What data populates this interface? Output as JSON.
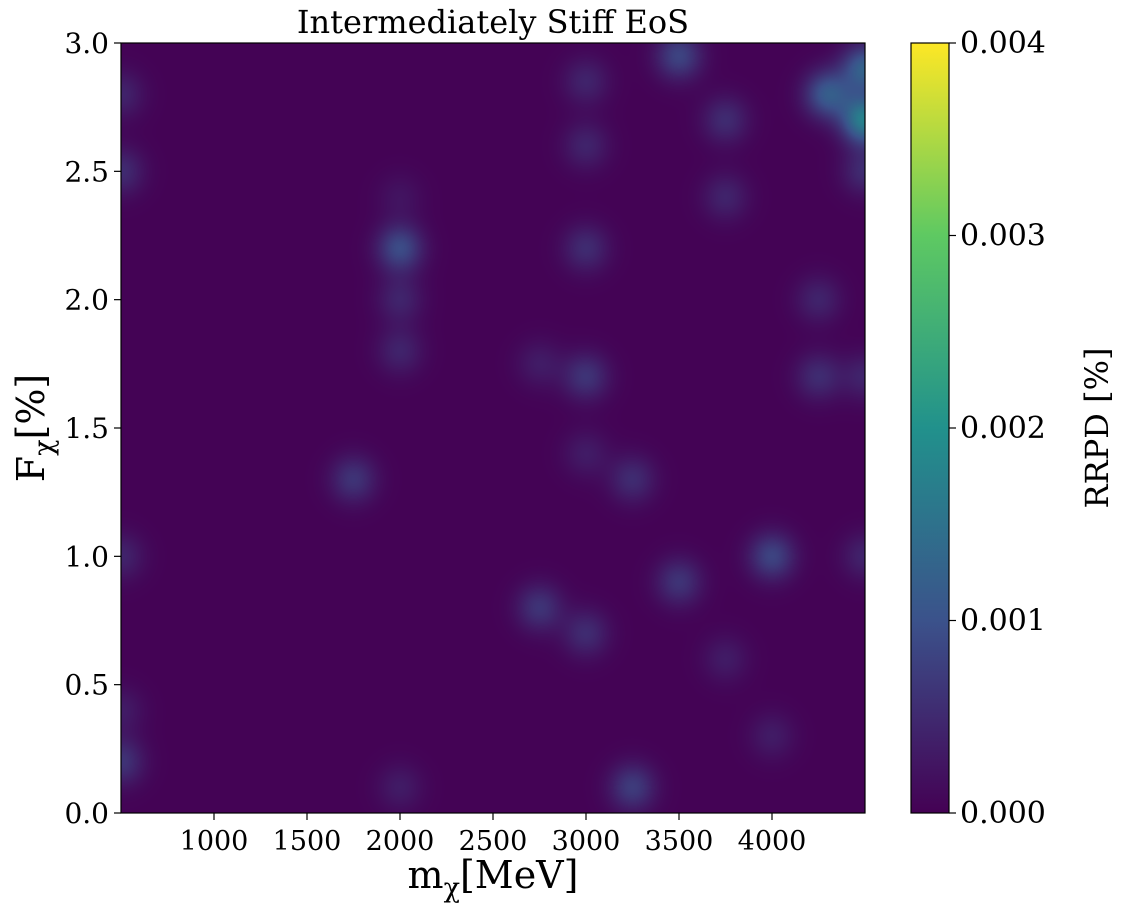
{
  "chart_data": {
    "type": "heatmap",
    "title": "Intermediately Stiff EoS",
    "xlabel": "m",
    "xlabel_sub": "χ",
    "xlabel_unit": "[MeV]",
    "ylabel": "F",
    "ylabel_sub": "χ",
    "ylabel_unit": "[%]",
    "colorbar_label": "RRPD [%]",
    "colormap": "viridis",
    "colormap_stops": [
      "#440154",
      "#3b528b",
      "#21918c",
      "#5ec962",
      "#fde725"
    ],
    "xlim": [
      500,
      4500
    ],
    "ylim": [
      0.0,
      3.0
    ],
    "clim": [
      0.0,
      0.004
    ],
    "x_ticks": [
      1000,
      1500,
      2000,
      2500,
      3000,
      3500,
      4000
    ],
    "x_tick_labels": [
      "1000",
      "1500",
      "2000",
      "2500",
      "3000",
      "3500",
      "4000"
    ],
    "y_ticks": [
      0.0,
      0.5,
      1.0,
      1.5,
      2.0,
      2.5,
      3.0
    ],
    "y_tick_labels": [
      "0.0",
      "0.5",
      "1.0",
      "1.5",
      "2.0",
      "2.5",
      "3.0"
    ],
    "colorbar_ticks": [
      0.0,
      0.001,
      0.002,
      0.003,
      0.004
    ],
    "colorbar_tick_labels": [
      "0.000",
      "0.001",
      "0.002",
      "0.003",
      "0.004"
    ],
    "background_value": 2e-05,
    "hotspots": [
      {
        "x": 2000,
        "y": 2.2,
        "value": 0.0009
      },
      {
        "x": 2000,
        "y": 2.0,
        "value": 0.0004
      },
      {
        "x": 2000,
        "y": 1.8,
        "value": 0.0004
      },
      {
        "x": 2000,
        "y": 2.4,
        "value": 0.0002
      },
      {
        "x": 1750,
        "y": 1.3,
        "value": 0.0006
      },
      {
        "x": 3000,
        "y": 2.2,
        "value": 0.0005
      },
      {
        "x": 3000,
        "y": 1.7,
        "value": 0.0006
      },
      {
        "x": 2750,
        "y": 1.75,
        "value": 0.0003
      },
      {
        "x": 3000,
        "y": 1.4,
        "value": 0.0003
      },
      {
        "x": 3250,
        "y": 1.3,
        "value": 0.0005
      },
      {
        "x": 3500,
        "y": 0.9,
        "value": 0.0006
      },
      {
        "x": 2750,
        "y": 0.8,
        "value": 0.0006
      },
      {
        "x": 3000,
        "y": 0.7,
        "value": 0.0005
      },
      {
        "x": 3250,
        "y": 0.1,
        "value": 0.0007
      },
      {
        "x": 2000,
        "y": 0.1,
        "value": 0.0003
      },
      {
        "x": 4000,
        "y": 1.0,
        "value": 0.0008
      },
      {
        "x": 4500,
        "y": 1.0,
        "value": 0.0004
      },
      {
        "x": 4250,
        "y": 1.7,
        "value": 0.0005
      },
      {
        "x": 4500,
        "y": 1.7,
        "value": 0.0004
      },
      {
        "x": 4250,
        "y": 2.0,
        "value": 0.0004
      },
      {
        "x": 4500,
        "y": 2.9,
        "value": 0.0012
      },
      {
        "x": 4500,
        "y": 2.7,
        "value": 0.0017
      },
      {
        "x": 4300,
        "y": 2.8,
        "value": 0.0011
      },
      {
        "x": 4500,
        "y": 2.5,
        "value": 0.0005
      },
      {
        "x": 3500,
        "y": 2.95,
        "value": 0.0008
      },
      {
        "x": 3750,
        "y": 2.7,
        "value": 0.0005
      },
      {
        "x": 3750,
        "y": 2.4,
        "value": 0.0004
      },
      {
        "x": 3000,
        "y": 2.6,
        "value": 0.0004
      },
      {
        "x": 3000,
        "y": 2.85,
        "value": 0.0004
      },
      {
        "x": 3750,
        "y": 0.6,
        "value": 0.0003
      },
      {
        "x": 4000,
        "y": 0.3,
        "value": 0.0003
      },
      {
        "x": 500,
        "y": 2.8,
        "value": 0.0004
      },
      {
        "x": 500,
        "y": 2.5,
        "value": 0.0005
      },
      {
        "x": 500,
        "y": 1.0,
        "value": 0.0004
      },
      {
        "x": 500,
        "y": 0.4,
        "value": 0.0003
      },
      {
        "x": 500,
        "y": 0.2,
        "value": 0.0006
      }
    ]
  }
}
